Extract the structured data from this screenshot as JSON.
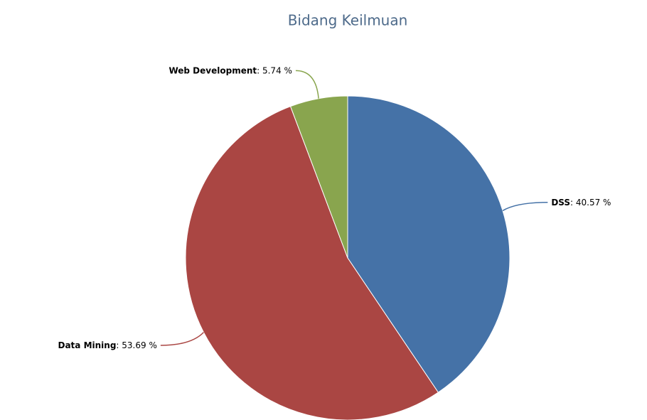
{
  "chart_data": {
    "type": "pie",
    "title": "Bidang Keilmuan",
    "categories": [
      "DSS",
      "Data Mining",
      "Web Development"
    ],
    "values": [
      40.57,
      53.69,
      5.74
    ],
    "value_labels": [
      ": 40.57 %",
      ": 53.69 %",
      ": 5.74 %"
    ],
    "colors": [
      "#4572a7",
      "#aa4643",
      "#89a54e"
    ]
  }
}
